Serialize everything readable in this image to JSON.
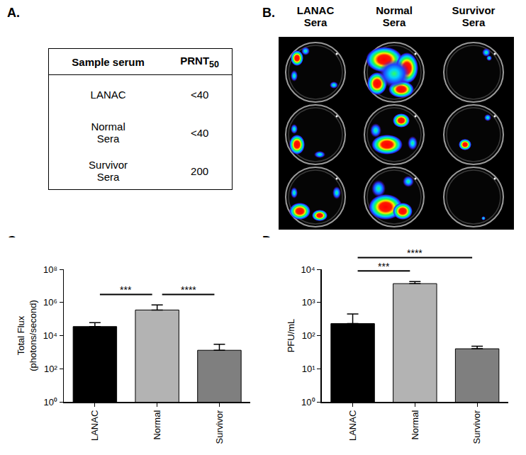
{
  "panel_labels": {
    "A": "A.",
    "B": "B.",
    "C": "C.",
    "D": "D."
  },
  "table": {
    "header": [
      {
        "text": "Sample serum"
      },
      {
        "text": "PRNT",
        "subscript": "50"
      }
    ],
    "rows": [
      [
        [
          "LANAC"
        ],
        "<40"
      ],
      [
        [
          "Normal",
          "Sera"
        ],
        "<40"
      ],
      [
        [
          "Survivor",
          "Sera"
        ],
        "200"
      ]
    ]
  },
  "image": {
    "column_labels": [
      [
        "LANAC",
        "Sera"
      ],
      [
        "Normal",
        "Sera"
      ],
      [
        "Survivor",
        "Sera"
      ]
    ]
  },
  "chart_data": [
    {
      "type": "bar",
      "y_label": [
        "Total Flux",
        "(photons/second)"
      ],
      "categories": [
        "LANAC",
        "Normal",
        "Survivor"
      ],
      "values": [
        35000,
        350000,
        1300
      ],
      "errors": [
        25000,
        350000,
        1700
      ],
      "colors": [
        "#000000",
        "#b3b3b3",
        "#7f7f7f"
      ],
      "log": "y",
      "ylim": [
        1,
        100000000
      ],
      "yticks": [
        {
          "value": 1,
          "label": "10⁰"
        },
        {
          "value": 100,
          "label": "10²"
        },
        {
          "value": 10000,
          "label": "10⁴"
        },
        {
          "value": 1000000,
          "label": "10⁶"
        },
        {
          "value": 100000000,
          "label": "10⁸"
        }
      ],
      "grid": false,
      "significance": [
        {
          "pair": [
            "LANAC",
            "Normal"
          ],
          "label": "***"
        },
        {
          "pair": [
            "Normal",
            "Survivor"
          ],
          "label": "****"
        }
      ]
    },
    {
      "type": "bar",
      "y_label": [
        "PFU/mL"
      ],
      "categories": [
        "LANAC",
        "Normal",
        "Survivor"
      ],
      "values": [
        230,
        3700,
        40
      ],
      "errors": [
        220,
        600,
        8
      ],
      "colors": [
        "#000000",
        "#b3b3b3",
        "#7f7f7f"
      ],
      "log": "y",
      "ylim": [
        1,
        10000
      ],
      "yticks": [
        {
          "value": 1,
          "label": "10⁰"
        },
        {
          "value": 10,
          "label": "10¹"
        },
        {
          "value": 100,
          "label": "10²"
        },
        {
          "value": 1000,
          "label": "10³"
        },
        {
          "value": 10000,
          "label": "10⁴"
        }
      ],
      "grid": false,
      "significance": [
        {
          "pair": [
            "LANAC",
            "Normal"
          ],
          "label": "***"
        },
        {
          "pair": [
            "LANAC",
            "Survivor"
          ],
          "label": "****"
        }
      ]
    }
  ]
}
